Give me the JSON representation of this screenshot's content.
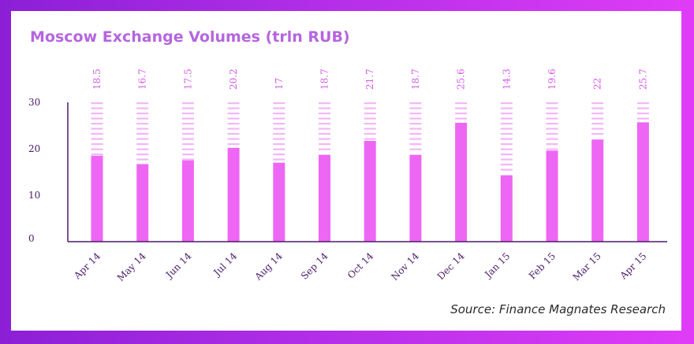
{
  "chart_data": {
    "type": "bar",
    "title": "Moscow Exchange Volumes (trln RUB)",
    "source": "Source: Finance Magnates Research",
    "categories": [
      "Apr 14",
      "May 14",
      "Jun 14",
      "Jul 14",
      "Aug 14",
      "Sep 14",
      "Oct 14",
      "Nov 14",
      "Dec 14",
      "Jan 15",
      "Feb 15",
      "Mar 15",
      "Apr 15"
    ],
    "values": [
      18.5,
      16.7,
      17.5,
      20.2,
      17,
      18.7,
      21.7,
      18.7,
      25.6,
      14.3,
      19.6,
      22,
      25.7
    ],
    "value_labels": [
      "18.5",
      "16.7",
      "17.5",
      "20.2",
      "17",
      "18.7",
      "21.7",
      "18.7",
      "25.6",
      "14.3",
      "19.6",
      "22",
      "25.7"
    ],
    "ylim": [
      0,
      30
    ],
    "yticks": [
      "0",
      "10",
      "20",
      "30"
    ],
    "xlabel": "",
    "ylabel": "",
    "grid": false,
    "colors": {
      "bar": "#ee66f4",
      "dash": "#f3b6f7",
      "axis": "#4a1a66",
      "value_label": "#d55ae8",
      "title": "#b565e0"
    }
  }
}
